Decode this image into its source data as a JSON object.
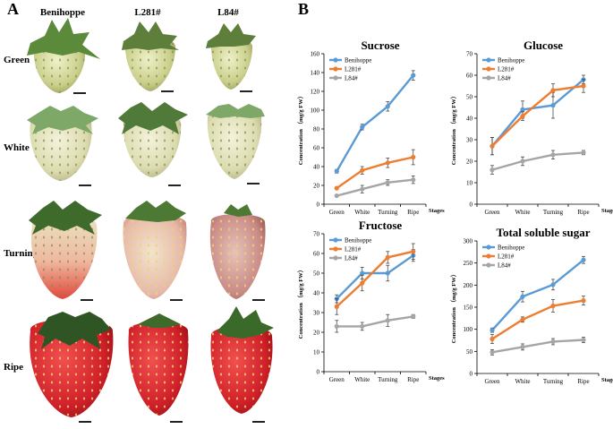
{
  "panel_a": {
    "letter": "A",
    "columns": [
      "Benihoppe",
      "L281#",
      "L84#"
    ],
    "rows": [
      "Green",
      "White",
      "Turning",
      "Ripe"
    ]
  },
  "panel_b": {
    "letter": "B"
  },
  "colors": {
    "benihoppe": "#5b9bd5",
    "l281": "#ed7d31",
    "l84": "#a5a5a5"
  },
  "chart_data": [
    {
      "type": "line",
      "title": "Sucrose",
      "categories": [
        "Green",
        "White",
        "Turning",
        "Ripe"
      ],
      "xlabel": "Stages",
      "ylabel": "Concentration （mg/g FW）",
      "ylim": [
        0,
        160
      ],
      "yticks": [
        0,
        20,
        40,
        60,
        80,
        100,
        120,
        140,
        160
      ],
      "series": [
        {
          "name": "Benihoppe",
          "values": [
            35,
            82,
            104,
            137
          ],
          "errors": [
            2,
            3,
            5,
            5
          ]
        },
        {
          "name": "L281#",
          "values": [
            17,
            36,
            44,
            50
          ],
          "errors": [
            1,
            4,
            5,
            8
          ]
        },
        {
          "name": "L84#",
          "values": [
            9,
            16,
            23,
            26
          ],
          "errors": [
            1,
            4,
            3,
            4
          ]
        }
      ]
    },
    {
      "type": "line",
      "title": "Glucose",
      "categories": [
        "Green",
        "White",
        "Turning",
        "Ripe"
      ],
      "xlabel": "Stages",
      "ylabel": "Concentration （mg/g FW）",
      "ylim": [
        0,
        70
      ],
      "yticks": [
        0,
        10,
        20,
        30,
        40,
        50,
        60,
        70
      ],
      "series": [
        {
          "name": "Benihoppe",
          "values": [
            27,
            44,
            46,
            58
          ],
          "errors": [
            4,
            4,
            6,
            2
          ]
        },
        {
          "name": "L281#",
          "values": [
            27,
            41,
            53,
            55
          ],
          "errors": [
            4,
            2,
            3,
            3
          ]
        },
        {
          "name": "L84#",
          "values": [
            16,
            20,
            23,
            24
          ],
          "errors": [
            2,
            2,
            2,
            1
          ]
        }
      ]
    },
    {
      "type": "line",
      "title": "Fructose",
      "categories": [
        "Green",
        "White",
        "Turning",
        "Ripe"
      ],
      "xlabel": "Stages",
      "ylabel": "Concentration （mg/g FW）",
      "ylim": [
        0,
        70
      ],
      "yticks": [
        0,
        10,
        20,
        30,
        40,
        50,
        60,
        70
      ],
      "series": [
        {
          "name": "Benihoppe",
          "values": [
            37,
            50,
            50,
            59
          ],
          "errors": [
            2,
            3,
            4,
            3
          ]
        },
        {
          "name": "L281#",
          "values": [
            33,
            45,
            58,
            61
          ],
          "errors": [
            4,
            4,
            3,
            4
          ]
        },
        {
          "name": "L84#",
          "values": [
            23,
            23,
            26,
            28
          ],
          "errors": [
            3,
            2,
            3,
            1
          ]
        }
      ]
    },
    {
      "type": "line",
      "title": "Total soluble sugar",
      "categories": [
        "Green",
        "White",
        "Turning",
        "Ripe"
      ],
      "xlabel": "Stages",
      "ylabel": "Concentration （mg/g FW）",
      "ylim": [
        0,
        300
      ],
      "yticks": [
        0,
        50,
        100,
        150,
        200,
        250,
        300
      ],
      "series": [
        {
          "name": "Benihoppe",
          "values": [
            98,
            174,
            201,
            257
          ],
          "errors": [
            5,
            12,
            12,
            8
          ]
        },
        {
          "name": "L281#",
          "values": [
            78,
            122,
            153,
            165
          ],
          "errors": [
            10,
            6,
            14,
            10
          ]
        },
        {
          "name": "L84#",
          "values": [
            48,
            60,
            72,
            76
          ],
          "errors": [
            6,
            7,
            7,
            6
          ]
        }
      ]
    }
  ]
}
